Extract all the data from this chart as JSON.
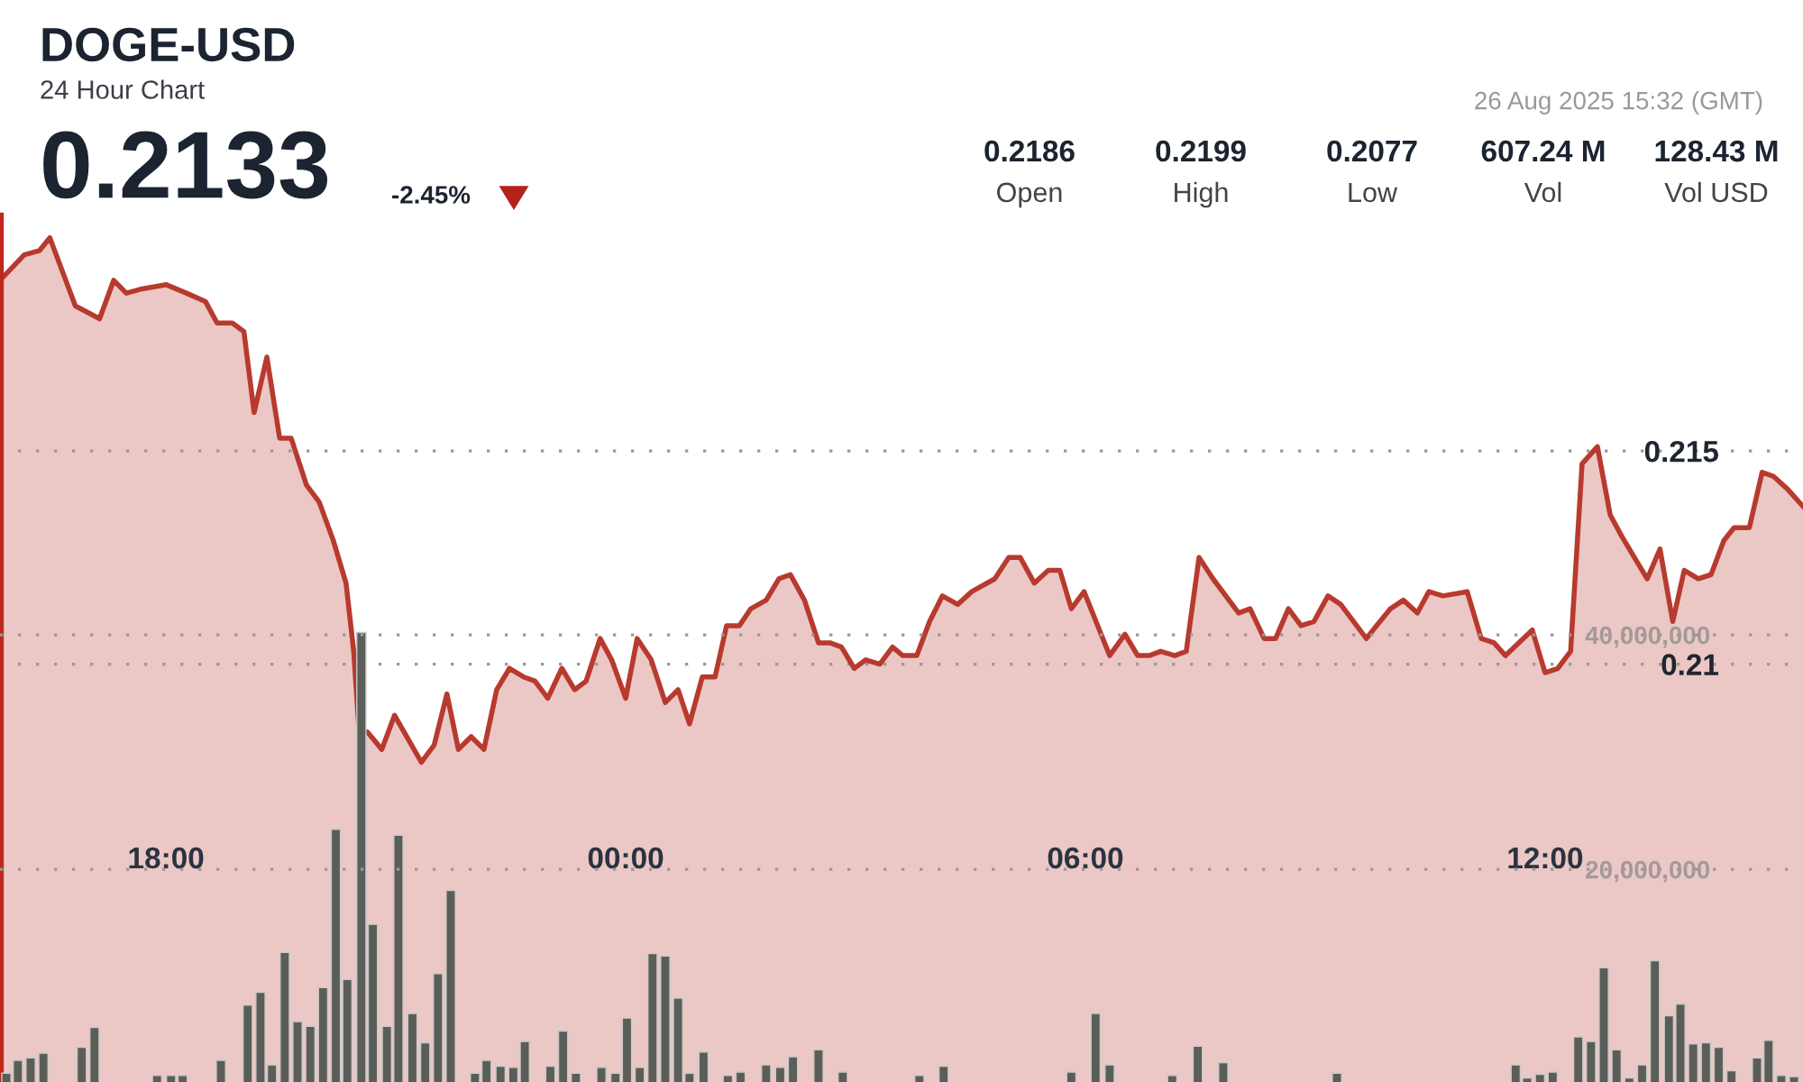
{
  "chart_data": {
    "type": "area",
    "title": "DOGE-USD",
    "subtitle": "24 Hour Chart",
    "annotations": [
      "0.2133",
      "-2.45%",
      "0.2186",
      "Open",
      "0.2199",
      "High",
      "0.2077",
      "Low",
      "607.24 M",
      "Vol",
      "128.43 M",
      "Vol USD",
      "26 Aug 2025 15:32 (GMT)"
    ],
    "series": [
      {
        "color": "#b83a2e",
        "x": [
          "2025-08-25T15:50",
          "2025-08-25T16:09",
          "2025-08-25T16:21",
          "2025-08-25T16:29",
          "2025-08-25T16:49",
          "2025-08-25T17:08",
          "2025-08-25T17:19",
          "2025-08-25T17:29",
          "2025-08-25T17:41",
          "2025-08-25T18:00",
          "2025-08-25T18:16",
          "2025-08-25T18:31",
          "2025-08-25T18:40",
          "2025-08-25T18:52",
          "2025-08-25T19:01",
          "2025-08-25T19:09",
          "2025-08-25T19:19",
          "2025-08-25T19:29",
          "2025-08-25T19:38",
          "2025-08-25T19:50",
          "2025-08-25T20:00",
          "2025-08-25T20:11",
          "2025-08-25T20:21",
          "2025-08-25T20:27",
          "2025-08-25T20:31",
          "2025-08-25T20:38",
          "2025-08-25T20:49",
          "2025-08-25T20:59",
          "2025-08-25T21:20",
          "2025-08-25T21:30",
          "2025-08-25T21:40",
          "2025-08-25T21:49",
          "2025-08-25T21:59",
          "2025-08-25T22:09",
          "2025-08-25T22:19",
          "2025-08-25T22:29",
          "2025-08-25T22:40",
          "2025-08-25T22:49",
          "2025-08-25T22:59",
          "2025-08-25T23:10",
          "2025-08-25T23:20",
          "2025-08-25T23:29",
          "2025-08-25T23:40",
          "2025-08-25T23:49",
          "2025-08-26T00:00",
          "2025-08-26T00:09",
          "2025-08-26T00:20",
          "2025-08-26T00:31",
          "2025-08-26T00:41",
          "2025-08-26T00:50",
          "2025-08-26T01:00",
          "2025-08-26T01:10",
          "2025-08-26T01:19",
          "2025-08-26T01:29",
          "2025-08-26T01:38",
          "2025-08-26T01:50",
          "2025-08-26T02:00",
          "2025-08-26T02:09",
          "2025-08-26T02:20",
          "2025-08-26T02:31",
          "2025-08-26T02:40",
          "2025-08-26T02:49",
          "2025-08-26T02:59",
          "2025-08-26T03:08",
          "2025-08-26T03:19",
          "2025-08-26T03:29",
          "2025-08-26T03:37",
          "2025-08-26T03:48",
          "2025-08-26T03:58",
          "2025-08-26T04:08",
          "2025-08-26T04:20",
          "2025-08-26T04:31",
          "2025-08-26T04:49",
          "2025-08-26T05:00",
          "2025-08-26T05:09",
          "2025-08-26T05:20",
          "2025-08-26T05:31",
          "2025-08-26T05:40",
          "2025-08-26T05:49",
          "2025-08-26T05:59",
          "2025-08-26T06:19",
          "2025-08-26T06:31",
          "2025-08-26T06:41",
          "2025-08-26T06:50",
          "2025-08-26T06:59",
          "2025-08-26T07:10",
          "2025-08-26T07:19",
          "2025-08-26T07:29",
          "2025-08-26T07:40",
          "2025-08-26T08:00",
          "2025-08-26T08:09",
          "2025-08-26T08:20",
          "2025-08-26T08:29",
          "2025-08-26T08:39",
          "2025-08-26T08:49",
          "2025-08-26T08:59",
          "2025-08-26T09:10",
          "2025-08-26T09:20",
          "2025-08-26T09:40",
          "2025-08-26T09:48",
          "2025-08-26T09:59",
          "2025-08-26T10:09",
          "2025-08-26T10:20",
          "2025-08-26T10:29",
          "2025-08-26T10:40",
          "2025-08-26T10:59",
          "2025-08-26T11:10",
          "2025-08-26T11:20",
          "2025-08-26T11:29",
          "2025-08-26T11:50",
          "2025-08-26T12:00",
          "2025-08-26T12:10",
          "2025-08-26T12:20",
          "2025-08-26T12:29",
          "2025-08-26T12:41",
          "2025-08-26T12:51",
          "2025-08-26T13:00",
          "2025-08-26T13:10",
          "2025-08-26T13:20",
          "2025-08-26T13:30",
          "2025-08-26T13:40",
          "2025-08-26T13:49",
          "2025-08-26T14:00",
          "2025-08-26T14:10",
          "2025-08-26T14:20",
          "2025-08-26T14:28",
          "2025-08-26T14:40",
          "2025-08-26T14:50",
          "2025-08-26T14:59",
          "2025-08-26T15:10",
          "2025-08-26T15:22"
        ],
        "values": [
          0.219,
          0.2196,
          0.2197,
          0.22,
          0.2184,
          0.2181,
          0.219,
          0.2187,
          0.2188,
          0.2189,
          0.2187,
          0.2185,
          0.218,
          0.218,
          0.2178,
          0.2159,
          0.2172,
          0.2153,
          0.2153,
          0.2142,
          0.2138,
          0.2129,
          0.2119,
          0.2103,
          0.2085,
          0.2084,
          0.208,
          0.2088,
          0.2077,
          0.2081,
          0.2093,
          0.208,
          0.2083,
          0.208,
          0.2094,
          0.2099,
          0.2097,
          0.2096,
          0.2092,
          0.2099,
          0.2094,
          0.2096,
          0.2106,
          0.2101,
          0.2092,
          0.2106,
          0.2101,
          0.2091,
          0.2094,
          0.2086,
          0.2097,
          0.2097,
          0.2109,
          0.2109,
          0.2113,
          0.2115,
          0.212,
          0.2121,
          0.2115,
          0.2105,
          0.2105,
          0.2104,
          0.2099,
          0.2101,
          0.21,
          0.2104,
          0.2102,
          0.2102,
          0.211,
          0.2116,
          0.2114,
          0.2117,
          0.212,
          0.2125,
          0.2125,
          0.2119,
          0.2122,
          0.2122,
          0.2113,
          0.2117,
          0.2102,
          0.2107,
          0.2102,
          0.2102,
          0.2103,
          0.2102,
          0.2103,
          0.2125,
          0.212,
          0.2112,
          0.2113,
          0.2106,
          0.2106,
          0.2113,
          0.2109,
          0.211,
          0.2116,
          0.2114,
          0.2106,
          0.2109,
          0.2113,
          0.2115,
          0.2112,
          0.2117,
          0.2116,
          0.2117,
          0.2106,
          0.2105,
          0.2102,
          0.2108,
          0.2098,
          0.2099,
          0.2103,
          0.2147,
          0.2151,
          0.2135,
          0.213,
          0.2125,
          0.212,
          0.2127,
          0.211,
          0.2122,
          0.212,
          0.2121,
          0.2129,
          0.2132,
          0.2132,
          0.2145,
          0.2144,
          0.2141,
          0.2137
        ]
      },
      {
        "type": "bar",
        "axis": "y2",
        "color": "#5a5e58",
        "x": [
          "2025-08-25T15:55",
          "2025-08-25T16:04",
          "2025-08-25T16:14",
          "2025-08-25T16:24",
          "2025-08-25T16:54",
          "2025-08-25T17:04",
          "2025-08-25T17:53",
          "2025-08-25T18:04",
          "2025-08-25T18:13",
          "2025-08-25T18:43",
          "2025-08-25T19:04",
          "2025-08-25T19:14",
          "2025-08-25T19:23",
          "2025-08-25T19:33",
          "2025-08-25T19:43",
          "2025-08-25T19:53",
          "2025-08-25T20:03",
          "2025-08-25T20:13",
          "2025-08-25T20:22",
          "2025-08-25T20:33",
          "2025-08-25T20:42",
          "2025-08-25T20:53",
          "2025-08-25T21:02",
          "2025-08-25T21:13",
          "2025-08-25T21:23",
          "2025-08-25T21:33",
          "2025-08-25T21:43",
          "2025-08-25T22:02",
          "2025-08-25T22:11",
          "2025-08-25T22:22",
          "2025-08-25T22:32",
          "2025-08-25T22:41",
          "2025-08-25T23:01",
          "2025-08-25T23:11",
          "2025-08-25T23:21",
          "2025-08-25T23:41",
          "2025-08-25T23:52",
          "2025-08-26T00:01",
          "2025-08-26T00:11",
          "2025-08-26T00:21",
          "2025-08-26T00:31",
          "2025-08-26T00:41",
          "2025-08-26T00:50",
          "2025-08-26T01:01",
          "2025-08-26T01:20",
          "2025-08-26T01:30",
          "2025-08-26T01:50",
          "2025-08-26T02:01",
          "2025-08-26T02:11",
          "2025-08-26T02:31",
          "2025-08-26T02:50",
          "2025-08-26T03:50",
          "2025-08-26T04:09",
          "2025-08-26T05:49",
          "2025-08-26T06:08",
          "2025-08-26T06:19",
          "2025-08-26T07:08",
          "2025-08-26T07:28",
          "2025-08-26T07:48",
          "2025-08-26T09:17",
          "2025-08-26T11:37",
          "2025-08-26T11:46",
          "2025-08-26T11:56",
          "2025-08-26T12:06",
          "2025-08-26T12:26",
          "2025-08-26T12:36",
          "2025-08-26T12:46",
          "2025-08-26T12:56",
          "2025-08-26T13:06",
          "2025-08-26T13:16",
          "2025-08-26T13:26",
          "2025-08-26T13:37",
          "2025-08-26T13:46",
          "2025-08-26T13:56",
          "2025-08-26T14:06",
          "2025-08-26T14:16",
          "2025-08-26T14:26",
          "2025-08-26T14:46",
          "2025-08-26T14:55",
          "2025-08-26T15:05",
          "2025-08-26T15:15"
        ],
        "values": [
          2600000,
          3700000,
          3900000,
          4300000,
          4800000,
          6500000,
          2400000,
          2400000,
          2400000,
          3700000,
          8400000,
          9500000,
          3300000,
          12900000,
          7000000,
          6600000,
          9900000,
          23400000,
          10600000,
          40200000,
          15300000,
          6600000,
          22900000,
          7700000,
          5200000,
          11100000,
          18200000,
          2600000,
          3700000,
          3200000,
          3100000,
          5300000,
          3200000,
          6200000,
          2600000,
          3100000,
          2600000,
          7300000,
          3100000,
          12800000,
          12600000,
          9000000,
          2600000,
          4400000,
          2400000,
          2700000,
          3300000,
          3100000,
          4000000,
          4600000,
          2700000,
          2400000,
          3200000,
          2700000,
          7700000,
          3300000,
          2400000,
          4900000,
          3500000,
          2600000,
          3300000,
          2200000,
          2500000,
          2700000,
          5700000,
          5300000,
          11600000,
          4600000,
          2200000,
          3300000,
          12200000,
          7500000,
          8500000,
          5100000,
          5200000,
          4800000,
          2800000,
          3900000,
          5400000,
          2400000,
          2300000
        ]
      }
    ],
    "xlim": [
      "2025-08-25T15:50",
      "2025-08-26T15:22"
    ],
    "xticks": [
      {
        "value": "2025-08-25T18:00",
        "label": "18:00"
      },
      {
        "value": "2025-08-26T00:00",
        "label": "00:00"
      },
      {
        "value": "2025-08-26T06:00",
        "label": "06:00"
      },
      {
        "value": "2025-08-26T12:00",
        "label": "12:00"
      }
    ],
    "ylim": [
      0.2002,
      0.2205
    ],
    "yticks": [
      0.21,
      0.215
    ],
    "y2lim": [
      1850000,
      75700000
    ],
    "y2ticks": [
      {
        "value": 20000000,
        "label": "20,000,000"
      },
      {
        "value": 40000000,
        "label": "40,000,000"
      }
    ],
    "grid": "y"
  }
}
